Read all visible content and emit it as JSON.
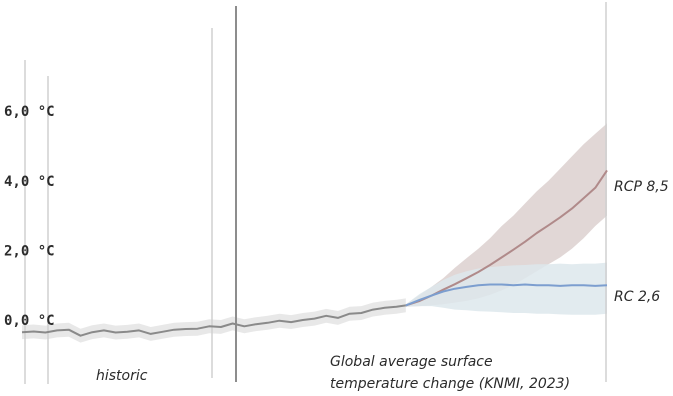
{
  "chart_data": {
    "type": "line",
    "yticks": [
      "6,0 °C",
      "4,0 °C",
      "2,0 °C",
      "0,0 °C"
    ],
    "ytick_values": [
      6,
      4,
      2,
      0
    ],
    "ylim": [
      -1.0,
      7.1
    ],
    "xlim": [
      1850,
      2100
    ],
    "grid": false,
    "annotations": {
      "historic": "historic",
      "caption_line1": "Global average surface",
      "caption_line2": "temperature change (KNMI, 2023)"
    },
    "series": [
      {
        "name": "historic",
        "color": "#8a8a8a",
        "band_color": "#e4e4e4",
        "x": [
          1850,
          1855,
          1860,
          1865,
          1870,
          1875,
          1880,
          1885,
          1890,
          1895,
          1900,
          1905,
          1910,
          1915,
          1920,
          1925,
          1930,
          1935,
          1940,
          1945,
          1950,
          1955,
          1960,
          1965,
          1970,
          1975,
          1980,
          1985,
          1990,
          1995,
          2000,
          2005,
          2010,
          2014
        ],
        "y": [
          -0.35,
          -0.33,
          -0.36,
          -0.3,
          -0.28,
          -0.45,
          -0.35,
          -0.3,
          -0.36,
          -0.34,
          -0.3,
          -0.4,
          -0.34,
          -0.28,
          -0.26,
          -0.25,
          -0.18,
          -0.2,
          -0.1,
          -0.18,
          -0.12,
          -0.08,
          -0.02,
          -0.06,
          0.0,
          0.04,
          0.12,
          0.06,
          0.18,
          0.2,
          0.3,
          0.35,
          0.38,
          0.42
        ],
        "band_half_width": 0.2
      },
      {
        "name": "RCP 8,5",
        "color": "#b08a8a",
        "band_color": "#dcd0cf",
        "x": [
          2014,
          2020,
          2025,
          2030,
          2035,
          2040,
          2045,
          2050,
          2055,
          2060,
          2065,
          2070,
          2075,
          2080,
          2085,
          2090,
          2095,
          2100
        ],
        "y": [
          0.42,
          0.55,
          0.7,
          0.87,
          1.03,
          1.2,
          1.38,
          1.58,
          1.8,
          2.02,
          2.25,
          2.5,
          2.72,
          2.95,
          3.2,
          3.5,
          3.8,
          4.3
        ],
        "band_lower": [
          0.38,
          0.4,
          0.42,
          0.45,
          0.5,
          0.55,
          0.62,
          0.72,
          0.85,
          1.0,
          1.2,
          1.4,
          1.6,
          1.8,
          2.05,
          2.35,
          2.7,
          3.0
        ],
        "band_upper": [
          0.45,
          0.72,
          0.95,
          1.2,
          1.5,
          1.78,
          2.05,
          2.35,
          2.7,
          3.0,
          3.35,
          3.7,
          4.0,
          4.35,
          4.7,
          5.05,
          5.35,
          5.65
        ]
      },
      {
        "name": "RC 2,6",
        "color": "#7c9ecf",
        "band_color": "#dde7ec",
        "x": [
          2014,
          2020,
          2025,
          2030,
          2035,
          2040,
          2045,
          2050,
          2055,
          2060,
          2065,
          2070,
          2075,
          2080,
          2085,
          2090,
          2095,
          2100
        ],
        "y": [
          0.42,
          0.58,
          0.7,
          0.82,
          0.9,
          0.95,
          1.0,
          1.02,
          1.02,
          1.0,
          1.02,
          1.0,
          1.0,
          0.98,
          1.0,
          1.0,
          0.98,
          1.0
        ],
        "band_lower": [
          0.38,
          0.4,
          0.4,
          0.35,
          0.3,
          0.28,
          0.25,
          0.24,
          0.22,
          0.2,
          0.2,
          0.18,
          0.18,
          0.16,
          0.15,
          0.15,
          0.15,
          0.18
        ],
        "band_upper": [
          0.45,
          0.75,
          0.95,
          1.15,
          1.3,
          1.4,
          1.48,
          1.52,
          1.55,
          1.57,
          1.58,
          1.6,
          1.6,
          1.62,
          1.6,
          1.62,
          1.62,
          1.65
        ]
      }
    ]
  }
}
